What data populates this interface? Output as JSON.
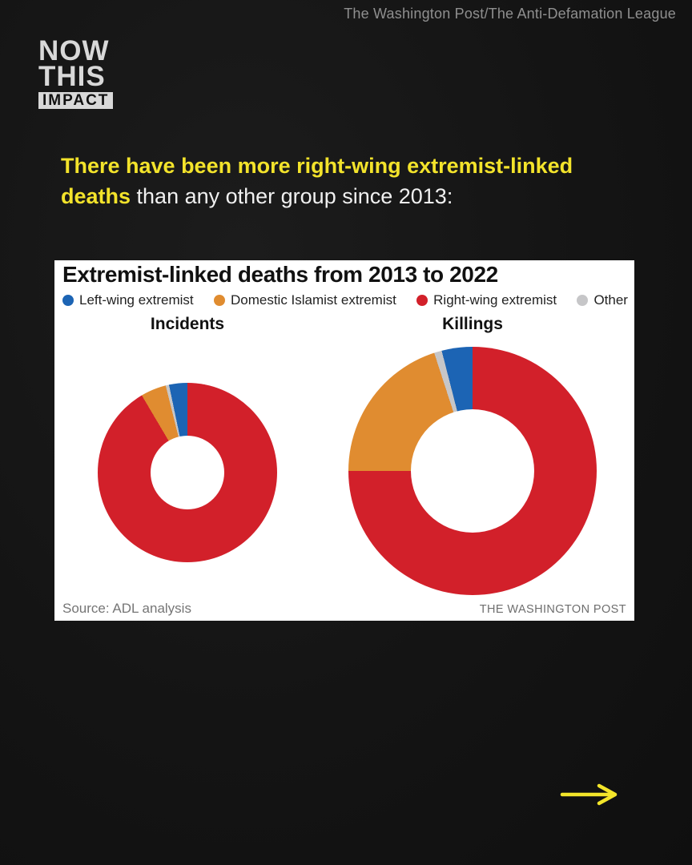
{
  "attribution": "The Washington Post/The Anti-Defamation League",
  "logo": {
    "line1": "NOW",
    "line2": "THIS",
    "badge": "IMPACT"
  },
  "headline": {
    "line1_highlight": "There have been more right-wing extremist-linked",
    "line2_highlight": "deaths",
    "line2_rest": " than any other group since 2013:"
  },
  "card": {
    "title": "Extremist-linked deaths from 2013 to 2022",
    "source": "Source: ADL analysis",
    "credit": "THE WASHINGTON POST"
  },
  "chart_data": {
    "type": "pie",
    "subtype": "donut-pair",
    "title": "Extremist-linked deaths from 2013 to 2022",
    "legend_position": "top",
    "legend": [
      {
        "label": "Left-wing extremist",
        "color": "#1c64b4"
      },
      {
        "label": "Domestic Islamist extremist",
        "color": "#e08c30"
      },
      {
        "label": "Right-wing extremist",
        "color": "#d2202a"
      },
      {
        "label": "Other",
        "color": "#c6c6c8"
      }
    ],
    "start_angle_deg": 0,
    "direction": "clockwise",
    "charts": [
      {
        "label": "Incidents",
        "segments": [
          {
            "name": "Right-wing extremist",
            "pct": 91.5
          },
          {
            "name": "Domestic Islamist extremist",
            "pct": 4.6
          },
          {
            "name": "Other",
            "pct": 0.6
          },
          {
            "name": "Left-wing extremist",
            "pct": 3.3
          }
        ]
      },
      {
        "label": "Killings",
        "segments": [
          {
            "name": "Right-wing extremist",
            "pct": 75
          },
          {
            "name": "Domestic Islamist extremist",
            "pct": 20
          },
          {
            "name": "Other",
            "pct": 1
          },
          {
            "name": "Left-wing extremist",
            "pct": 4
          }
        ]
      }
    ]
  },
  "colors": {
    "background": "#141414",
    "headline_yellow": "#f3e32b",
    "headline_white": "#f0f0f0",
    "card_background": "#ffffff",
    "arrow_yellow": "#f3e52a",
    "attribution_gray": "#8f8f8f"
  }
}
